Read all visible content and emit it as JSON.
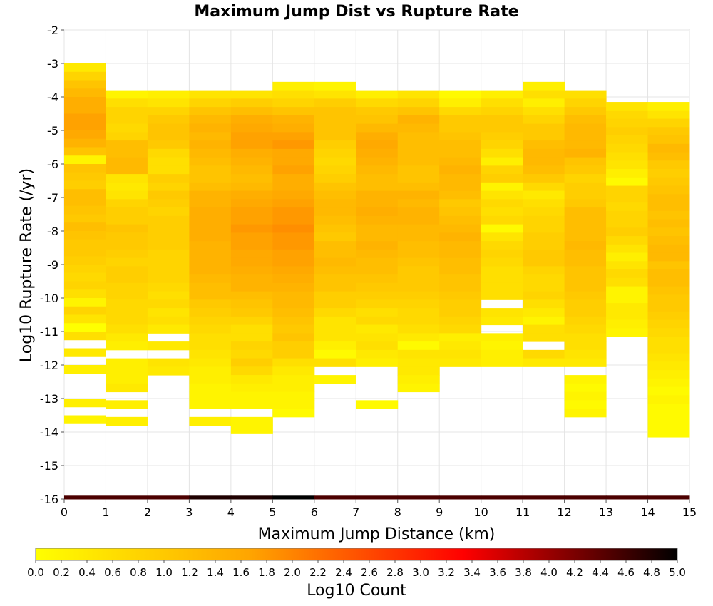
{
  "chart_data": {
    "type": "heatmap",
    "title": "Maximum Jump Dist vs Rupture Rate",
    "xlabel": "Maximum Jump Distance (km)",
    "ylabel": "Log10 Rupture Rate (/yr)",
    "colorbar_label": "Log10 Count",
    "xlim": [
      0,
      15
    ],
    "ylim": [
      -16,
      -2
    ],
    "x_ticks": [
      "0",
      "1",
      "2",
      "3",
      "4",
      "5",
      "6",
      "7",
      "8",
      "9",
      "10",
      "11",
      "12",
      "13",
      "14",
      "15"
    ],
    "y_ticks": [
      "-2",
      "-3",
      "-4",
      "-5",
      "-6",
      "-7",
      "-8",
      "-9",
      "-10",
      "-11",
      "-12",
      "-13",
      "-14",
      "-15",
      "-16"
    ],
    "colorbar_range": [
      0,
      5
    ],
    "colorbar_ticks": [
      "0.0",
      "0.2",
      "0.4",
      "0.6",
      "0.8",
      "1.0",
      "1.2",
      "1.4",
      "1.6",
      "1.8",
      "2.0",
      "2.2",
      "2.4",
      "2.6",
      "2.8",
      "3.0",
      "3.2",
      "3.4",
      "3.6",
      "3.8",
      "4.0",
      "4.2",
      "4.4",
      "4.6",
      "4.8",
      "5.0"
    ],
    "colormap": [
      "#ffff00",
      "#ffa500",
      "#ff0000",
      "#000000"
    ],
    "grid": true,
    "x_bin_width": 1,
    "y_bin_height": 0.25,
    "columns": [
      {
        "x0": 0,
        "y_start": -3.0,
        "values": [
          0.4,
          0.8,
          1.1,
          1.3,
          1.5,
          1.5,
          1.7,
          1.7,
          1.6,
          1.4,
          1.1,
          0.2,
          1.1,
          1.0,
          0.9,
          1.2,
          1.2,
          1.1,
          1.0,
          1.2,
          1.1,
          1.0,
          1.0,
          0.9,
          0.8,
          0.7,
          0.8,
          0.6,
          0.2,
          0.8,
          0.5,
          0.0,
          0.6,
          null,
          0.4,
          null,
          0.3,
          null,
          null,
          null,
          0.3,
          null,
          0.2,
          4.5
        ]
      },
      {
        "x0": 1,
        "y_start": -3.8,
        "values": [
          0.2,
          0.6,
          0.8,
          0.8,
          0.7,
          0.8,
          1.2,
          1.2,
          1.3,
          1.3,
          0.5,
          0.4,
          0.5,
          0.8,
          0.9,
          0.9,
          1.1,
          1.0,
          1.0,
          0.9,
          0.8,
          0.9,
          0.9,
          0.8,
          0.8,
          0.7,
          0.7,
          0.7,
          0.6,
          0.4,
          0.3,
          null,
          0.3,
          0.3,
          0.3,
          0.4,
          null,
          0.3,
          null,
          0.3,
          null,
          null,
          null,
          4.5
        ]
      },
      {
        "x0": 2,
        "y_start": -3.8,
        "values": [
          0.3,
          0.5,
          0.8,
          1.0,
          1.1,
          1.1,
          1.0,
          0.7,
          0.6,
          0.6,
          0.9,
          0.8,
          1.0,
          0.9,
          0.8,
          0.9,
          0.9,
          0.9,
          0.9,
          0.8,
          0.8,
          0.8,
          0.8,
          0.7,
          0.6,
          0.7,
          0.5,
          0.6,
          0.4,
          null,
          0.4,
          null,
          0.5,
          0.4,
          null,
          null,
          null,
          null,
          null,
          null,
          null,
          null,
          null,
          4.5
        ]
      },
      {
        "x0": 3,
        "y_start": -3.8,
        "values": [
          0.5,
          0.8,
          1.1,
          1.3,
          1.4,
          1.3,
          1.4,
          1.3,
          1.2,
          1.1,
          1.1,
          1.2,
          1.4,
          1.4,
          1.5,
          1.5,
          1.5,
          1.5,
          1.4,
          1.4,
          1.4,
          1.4,
          1.3,
          1.2,
          1.2,
          1.0,
          0.9,
          0.8,
          0.7,
          0.6,
          0.6,
          0.5,
          0.4,
          0.3,
          0.3,
          0.2,
          0.2,
          0.2,
          null,
          0.3,
          null,
          null,
          null,
          4.8
        ]
      },
      {
        "x0": 4,
        "y_start": -3.8,
        "values": [
          0.5,
          0.9,
          1.2,
          1.5,
          1.6,
          1.7,
          1.7,
          1.5,
          1.4,
          1.3,
          1.2,
          1.3,
          1.5,
          1.6,
          1.7,
          1.7,
          1.8,
          1.7,
          1.7,
          1.6,
          1.6,
          1.5,
          1.4,
          1.4,
          1.2,
          1.1,
          1.0,
          0.8,
          0.6,
          0.6,
          0.8,
          0.7,
          0.9,
          0.7,
          0.4,
          0.3,
          0.2,
          0.2,
          null,
          0.2,
          0.2,
          null,
          null,
          4.8
        ]
      },
      {
        "x0": 5,
        "y_start": -3.55,
        "values": [
          0.3,
          0.6,
          0.8,
          1.1,
          1.4,
          1.5,
          1.7,
          1.8,
          1.6,
          1.6,
          1.7,
          1.5,
          1.5,
          1.6,
          1.7,
          1.8,
          1.8,
          1.9,
          1.8,
          1.8,
          1.7,
          1.7,
          1.6,
          1.5,
          1.4,
          1.3,
          1.3,
          1.2,
          1.1,
          1.0,
          1.1,
          0.9,
          0.9,
          0.6,
          0.4,
          0.3,
          0.3,
          0.2,
          0.2,
          0.1,
          null,
          null,
          null,
          null,
          5.0
        ]
      },
      {
        "x0": 6,
        "y_start": -3.55,
        "values": [
          0.2,
          0.5,
          0.9,
          1.1,
          1.1,
          1.1,
          1.1,
          0.9,
          0.8,
          0.7,
          0.8,
          0.9,
          1.1,
          1.2,
          1.3,
          1.3,
          1.2,
          1.1,
          1.0,
          1.2,
          1.2,
          1.3,
          1.2,
          1.1,
          1.1,
          0.9,
          0.9,
          0.7,
          0.5,
          0.5,
          0.5,
          0.3,
          0.1,
          0.6,
          null,
          0.2,
          null,
          null,
          null,
          null,
          null,
          null,
          null,
          4.5
        ]
      },
      {
        "x0": 7,
        "y_start": -3.8,
        "values": [
          0.3,
          0.7,
          1.0,
          1.1,
          1.3,
          1.5,
          1.6,
          1.5,
          1.4,
          1.3,
          1.2,
          1.2,
          1.4,
          1.4,
          1.5,
          1.4,
          1.3,
          1.3,
          1.4,
          1.3,
          1.2,
          1.2,
          1.1,
          1.0,
          0.9,
          0.8,
          0.6,
          0.7,
          0.4,
          0.5,
          0.6,
          0.4,
          0.3,
          null,
          null,
          null,
          null,
          0.1,
          null,
          4.5
        ]
      },
      {
        "x0": 8,
        "y_start": -3.8,
        "values": [
          0.5,
          0.8,
          1.1,
          1.4,
          1.3,
          1.2,
          1.2,
          1.2,
          1.2,
          1.1,
          1.1,
          1.2,
          1.4,
          1.3,
          1.4,
          1.4,
          1.3,
          1.3,
          1.2,
          1.2,
          1.1,
          1.0,
          1.0,
          1.0,
          0.9,
          0.8,
          0.7,
          0.7,
          0.6,
          0.4,
          0.1,
          0.5,
          0.4,
          0.4,
          0.3,
          0.2,
          null,
          null,
          null,
          4.5
        ]
      },
      {
        "x0": 9,
        "y_start": -3.8,
        "values": [
          0.1,
          0.3,
          0.7,
          1.0,
          1.0,
          1.1,
          1.2,
          1.2,
          1.3,
          1.4,
          1.3,
          1.3,
          1.2,
          1.0,
          1.1,
          1.2,
          1.3,
          1.4,
          1.3,
          1.3,
          1.2,
          1.2,
          1.1,
          1.1,
          1.0,
          0.9,
          0.9,
          0.8,
          0.7,
          0.3,
          0.4,
          0.5,
          0.4,
          null,
          null,
          null,
          null,
          null,
          null,
          4.5
        ]
      },
      {
        "x0": 10,
        "y_start": -3.8,
        "values": [
          0.3,
          0.6,
          0.8,
          1.0,
          1.0,
          0.9,
          0.8,
          0.6,
          0.3,
          0.8,
          0.9,
          0.2,
          0.5,
          0.7,
          0.6,
          0.7,
          0.1,
          0.5,
          0.7,
          0.8,
          0.7,
          0.6,
          0.6,
          0.6,
          0.6,
          null,
          0.5,
          0.4,
          null,
          0.3,
          0.2,
          0.3,
          0.3,
          null,
          null,
          null,
          null,
          null,
          null,
          4.5
        ]
      },
      {
        "x0": 11,
        "y_start": -3.55,
        "values": [
          0.3,
          0.6,
          0.3,
          0.6,
          0.8,
          1.0,
          1.0,
          1.2,
          1.3,
          1.3,
          1.2,
          1.0,
          0.7,
          0.4,
          0.6,
          0.7,
          0.8,
          0.8,
          0.9,
          0.9,
          1.0,
          1.0,
          0.8,
          0.7,
          0.7,
          0.8,
          0.6,
          0.4,
          0.2,
          0.6,
          0.6,
          null,
          0.7,
          0.4,
          null,
          null,
          null,
          null,
          null,
          null,
          null,
          null,
          null,
          4.5
        ]
      },
      {
        "x0": 12,
        "y_start": -3.8,
        "values": [
          0.6,
          0.8,
          1.0,
          1.2,
          1.3,
          1.3,
          1.3,
          1.4,
          1.1,
          1.0,
          0.8,
          0.9,
          0.9,
          1.0,
          1.2,
          1.2,
          1.2,
          1.2,
          1.3,
          1.2,
          1.2,
          1.1,
          1.1,
          1.1,
          1.0,
          0.9,
          0.9,
          0.8,
          0.7,
          0.6,
          0.6,
          0.5,
          0.4,
          null,
          0.2,
          0.1,
          0.2,
          0.1,
          0.2,
          null,
          null,
          null,
          null,
          4.5
        ]
      },
      {
        "x0": 13,
        "y_start": -4.15,
        "values": [
          0.5,
          0.7,
          0.8,
          0.9,
          0.8,
          0.7,
          0.6,
          0.5,
          0.3,
          0.1,
          0.8,
          0.8,
          0.7,
          0.8,
          0.8,
          0.9,
          0.7,
          0.5,
          0.3,
          0.5,
          0.7,
          0.6,
          0.2,
          0.2,
          0.4,
          0.4,
          0.3,
          0.2,
          null,
          null,
          null,
          null,
          null,
          null,
          null,
          null,
          null,
          null,
          null,
          4.5
        ]
      },
      {
        "x0": 14,
        "y_start": -4.15,
        "values": [
          0.3,
          0.5,
          0.8,
          1.0,
          1.1,
          1.3,
          1.2,
          1.0,
          0.9,
          1.0,
          1.1,
          1.2,
          1.2,
          1.1,
          1.2,
          1.1,
          1.2,
          1.3,
          1.3,
          1.1,
          1.2,
          1.2,
          1.1,
          1.0,
          1.0,
          0.9,
          0.8,
          0.7,
          0.6,
          0.6,
          0.5,
          0.4,
          0.3,
          0.2,
          0.1,
          0.2,
          0.1,
          0.1,
          0.1,
          0.1,
          4.5
        ]
      }
    ]
  }
}
